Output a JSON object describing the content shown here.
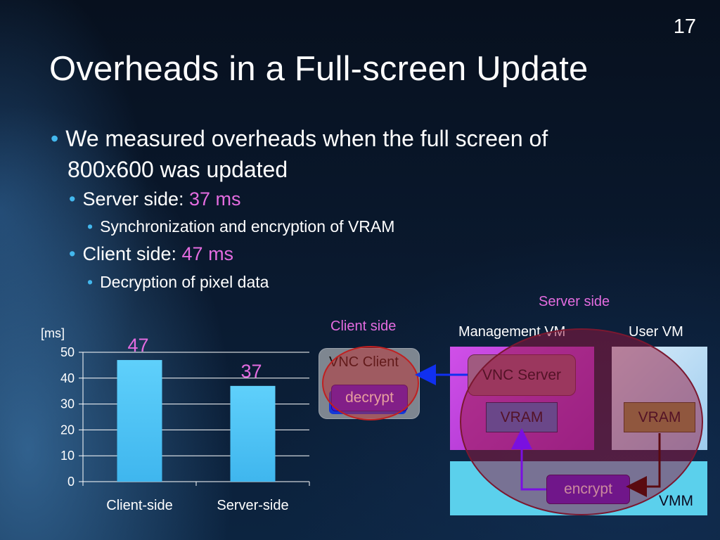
{
  "slide": {
    "number": "17",
    "title": "Overheads in a Full-screen Update"
  },
  "bullets": {
    "main_line1": "We measured overheads when the full screen of",
    "main_line2": "800x600 was updated",
    "server": {
      "label": "Server side: ",
      "value": "37 ms",
      "detail": "Synchronization and encryption of VRAM"
    },
    "client": {
      "label": "Client side: ",
      "value": "47 ms",
      "detail": "Decryption of pixel data"
    }
  },
  "chart_data": {
    "type": "bar",
    "unit_label": "[ms]",
    "categories": [
      "Client-side",
      "Server-side"
    ],
    "values": [
      47,
      37
    ],
    "data_labels": [
      "47",
      "37"
    ],
    "ylim": [
      0,
      50
    ],
    "yticks": [
      "0",
      "10",
      "20",
      "30",
      "40",
      "50"
    ],
    "ytick_values": [
      0,
      10,
      20,
      30,
      40,
      50
    ],
    "grid": true,
    "bar_color": "#3fb6ee",
    "label_color": "#e46ce0"
  },
  "diagram": {
    "server_side_label": "Server side",
    "client_side_label": "Client side",
    "management_vm": "Management VM",
    "user_vm": "User VM",
    "vnc_client": "VNC Client",
    "decrypt": "decrypt",
    "vnc_server": "VNC Server",
    "vram_mgmt": "VRAM",
    "vram_user": "VRAM",
    "encrypt": "encrypt",
    "vmm": "VMM",
    "colors": {
      "highlight_label": "#e46ce0",
      "vmm_fill": "#5bd0ec",
      "management_fill": "#c03ad8",
      "user_vm_fill": "#b8dcf4",
      "encrypt_fill": "#4a18d8",
      "arrow_blue": "#1030f0",
      "arrow_purple": "#7a10e0",
      "arrow_dark": "#5a0a10"
    }
  }
}
